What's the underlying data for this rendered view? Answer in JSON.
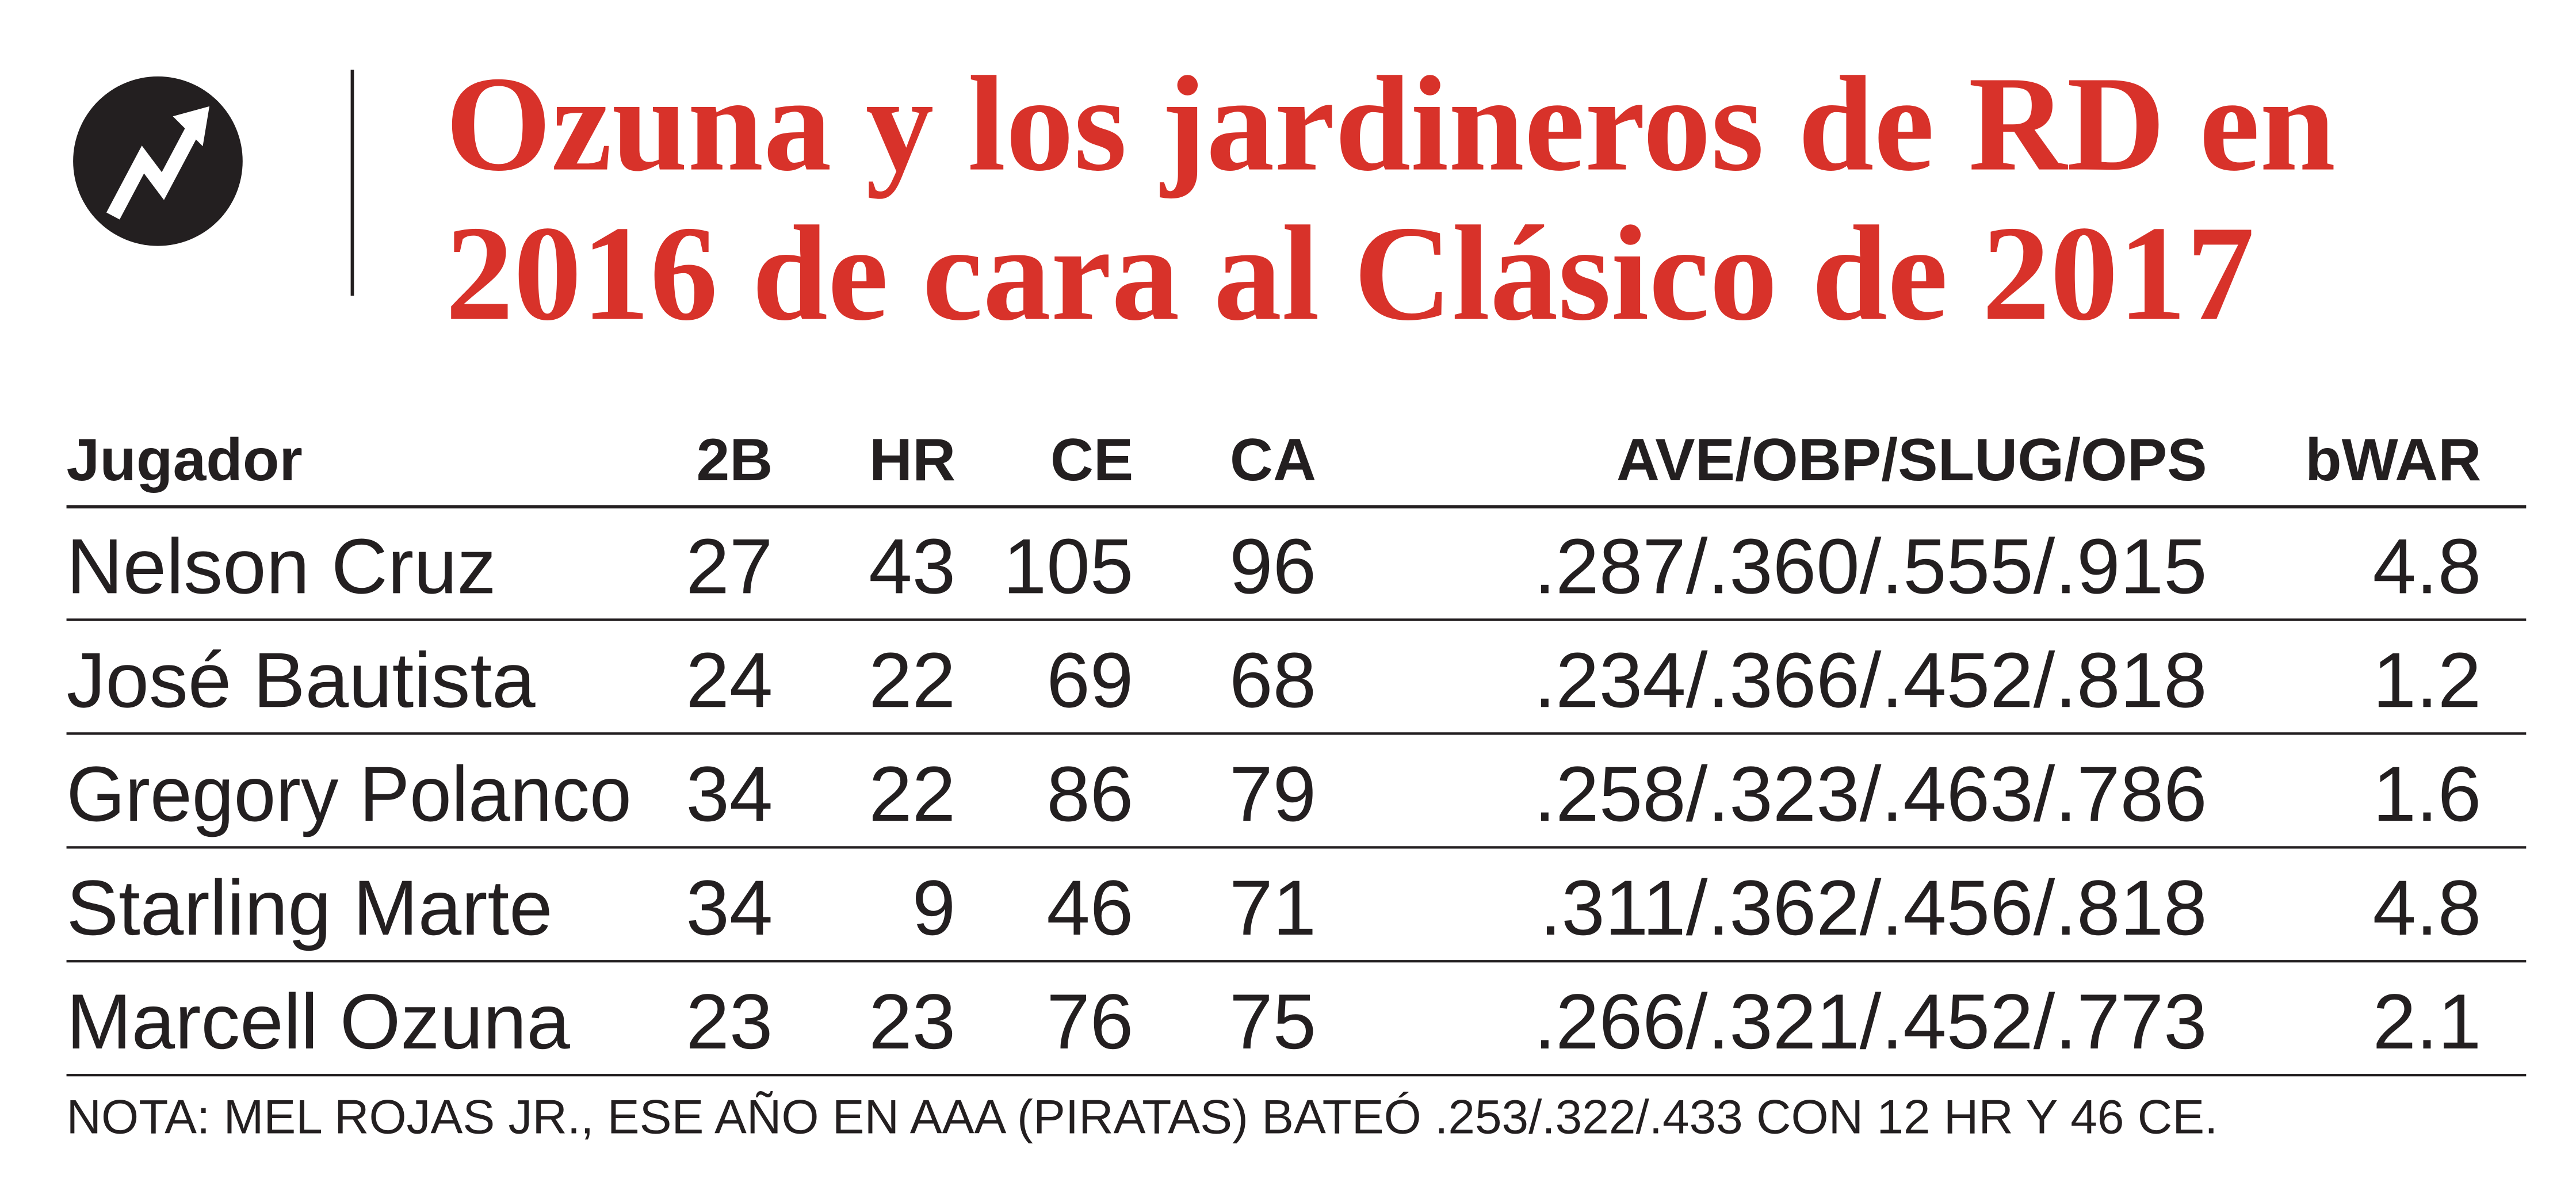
{
  "header": {
    "title": [
      "Ozuna y los jardineros de RD en",
      "2016 de cara al Clásico de 2017"
    ]
  },
  "table": {
    "columns": [
      "Jugador",
      "2B",
      "HR",
      "CE",
      "CA",
      "AVE/OBP/SLUG/OPS",
      "bWAR"
    ],
    "rows": [
      [
        "Nelson Cruz",
        27,
        43,
        105,
        96,
        ".287/.360/.555/.915",
        4.8
      ],
      [
        "José Bautista",
        24,
        22,
        69,
        68,
        ".234/.366/.452/.818",
        1.2
      ],
      [
        "Gregory Polanco",
        34,
        22,
        86,
        79,
        ".258/.323/.463/.786",
        1.6
      ],
      [
        "Starling Marte",
        34,
        9,
        46,
        71,
        ".311/.362/.456/.818",
        4.8
      ],
      [
        "Marcell Ozuna",
        23,
        23,
        76,
        75,
        ".266/.321/.452/.773",
        2.1
      ]
    ]
  },
  "note": "NOTA: MEL ROJAS JR., ESE AÑO EN AAA (PIRATAS) BATEÓ .253/.322/.433 CON 12 HR Y 46 CE."
}
